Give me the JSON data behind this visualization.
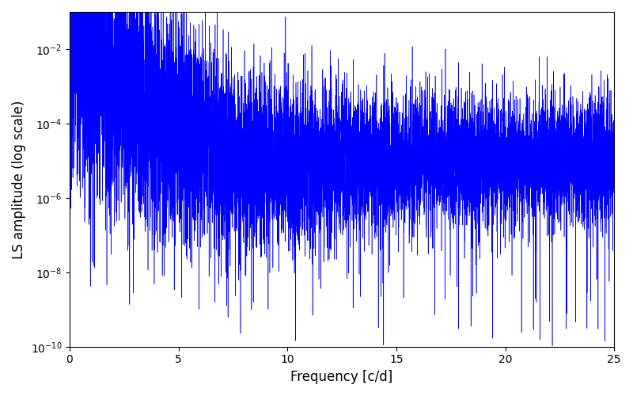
{
  "xlabel": "Frequency [c/d]",
  "ylabel": "LS amplitude (log scale)",
  "line_color": "#0000ff",
  "xlim": [
    0,
    25
  ],
  "ylim": [
    1e-10,
    0.1
  ],
  "xticks": [
    0,
    5,
    10,
    15,
    20,
    25
  ],
  "figsize": [
    8.0,
    5.0
  ],
  "dpi": 100,
  "n_points": 10000,
  "seed": 7,
  "background_color": "#ffffff",
  "line_width": 0.4
}
